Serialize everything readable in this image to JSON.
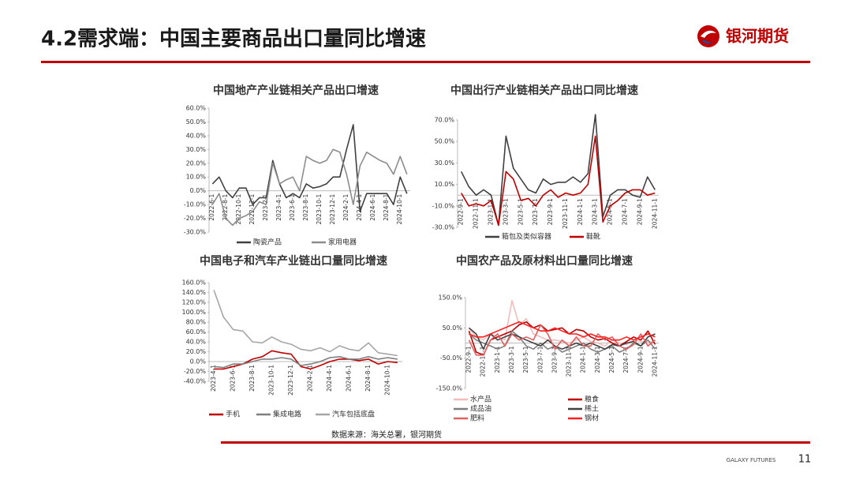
{
  "header": {
    "title": "4.2需求端：中国主要商品出口量同比增速",
    "logo_text": "银河期货"
  },
  "footer": {
    "source": "数据来源：海关总署，银河期货",
    "brand": "GALAXY FUTURES",
    "page": "11"
  },
  "chart_data": [
    {
      "type": "line",
      "title": "中国地产产业链相关产品出口增速",
      "categories": [
        "2022-6-1",
        null,
        "2022-8-1",
        null,
        "2022-10-1",
        null,
        "2022-12-1",
        null,
        "2023-2-1",
        null,
        "2023-4-1",
        null,
        "2023-6-1",
        null,
        "2023-8-1",
        null,
        "2023-10-1",
        null,
        "2023-12-1",
        null,
        "2024-2-1",
        null,
        "2024-4-1",
        null,
        "2024-6-1",
        null,
        "2024-8-1",
        null,
        "2024-10-1",
        null
      ],
      "ylim": [
        -30,
        60
      ],
      "yticks": [
        {
          "value": -30,
          "label": "-30.0%"
        },
        {
          "value": -20,
          "label": "-20.0%"
        },
        {
          "value": -10,
          "label": "-10.0%"
        },
        {
          "value": 0,
          "label": "0.0%"
        },
        {
          "value": 10,
          "label": "10.0%"
        },
        {
          "value": 20,
          "label": "20.0%"
        },
        {
          "value": 30,
          "label": "30.0%"
        },
        {
          "value": 40,
          "label": "40.0%"
        },
        {
          "value": 50,
          "label": "50.0%"
        },
        {
          "value": 60,
          "label": "60.0%"
        }
      ],
      "legend": "bottom",
      "series": [
        {
          "name": "陶瓷产品",
          "color": "#404040",
          "values": [
            5,
            10,
            0,
            -5,
            2,
            2,
            -10,
            -5,
            -5,
            22,
            5,
            -5,
            -2,
            -5,
            5,
            2,
            3,
            5,
            10,
            10,
            30,
            48,
            -15,
            -2,
            -2,
            -2,
            -2,
            -10,
            10,
            -2
          ]
        },
        {
          "name": "家用电器",
          "color": "#8c8c8c",
          "values": [
            -10,
            -2,
            -20,
            -25,
            -20,
            -18,
            -15,
            -8,
            -10,
            20,
            5,
            8,
            10,
            0,
            25,
            22,
            20,
            22,
            30,
            28,
            12,
            -10,
            18,
            28,
            25,
            22,
            20,
            12,
            25,
            12
          ]
        }
      ]
    },
    {
      "type": "line",
      "title": "中国出行产业链相关产品出口同比增速",
      "categories": [
        "2022-9-1",
        null,
        "2022-11-1",
        null,
        "2023-1-1",
        null,
        "2023-3-1",
        null,
        "2023-5-1",
        null,
        "2023-7-1",
        null,
        "2023-9-1",
        null,
        "2023-11-1",
        null,
        "2024-1-1",
        null,
        "2024-3-1",
        null,
        "2024-5-1",
        null,
        "2024-7-1",
        null,
        "2024-9-1",
        null,
        "2024-11-1"
      ],
      "ylim": [
        -30,
        70
      ],
      "yticks": [
        {
          "value": -30,
          "label": "-30.0%"
        },
        {
          "value": -10,
          "label": "-10.0%"
        },
        {
          "value": 10,
          "label": "10.0%"
        },
        {
          "value": 30,
          "label": "30.0%"
        },
        {
          "value": 50,
          "label": "50.0%"
        },
        {
          "value": 70,
          "label": "70.0%"
        }
      ],
      "legend": "bottom",
      "series": [
        {
          "name": "箱包及类似容器",
          "color": "#404040",
          "values": [
            22,
            8,
            0,
            5,
            0,
            -28,
            55,
            25,
            15,
            5,
            2,
            15,
            10,
            12,
            12,
            17,
            12,
            20,
            75,
            -20,
            0,
            5,
            5,
            0,
            -2,
            17,
            5
          ]
        },
        {
          "name": "鞋靴",
          "color": "#c00000",
          "values": [
            2,
            -10,
            -8,
            -10,
            -5,
            -28,
            22,
            15,
            -5,
            -3,
            -10,
            0,
            5,
            -2,
            2,
            0,
            2,
            10,
            55,
            -25,
            -10,
            -5,
            2,
            5,
            5,
            0,
            2
          ]
        }
      ]
    },
    {
      "type": "line",
      "title": "中国电子和汽车产业链出口量同比增速",
      "categories": [
        "2023-4-1",
        null,
        "2023-6-1",
        null,
        "2023-8-1",
        null,
        "2023-10-1",
        null,
        "2023-12-1",
        null,
        "2024-2-1",
        null,
        "2024-4-1",
        null,
        "2024-6-1",
        null,
        "2024-8-1",
        null,
        "2024-10-1",
        null
      ],
      "ylim": [
        -40,
        160
      ],
      "yticks": [
        {
          "value": -40,
          "label": "-40.0%"
        },
        {
          "value": -20,
          "label": "-20.0%"
        },
        {
          "value": 0,
          "label": "0.0%"
        },
        {
          "value": 20,
          "label": "20.0%"
        },
        {
          "value": 40,
          "label": "40.0%"
        },
        {
          "value": 60,
          "label": "60.0%"
        },
        {
          "value": 80,
          "label": "80.0%"
        },
        {
          "value": 100,
          "label": "100.0%"
        },
        {
          "value": 120,
          "label": "120.0%"
        },
        {
          "value": 140,
          "label": "140.0%"
        },
        {
          "value": 160,
          "label": "160.0%"
        }
      ],
      "legend": "bottom",
      "series": [
        {
          "name": "手机",
          "color": "#c00000",
          "values": [
            -15,
            -15,
            -10,
            -5,
            5,
            10,
            22,
            18,
            15,
            -10,
            -15,
            -8,
            0,
            5,
            5,
            2,
            5,
            -5,
            0,
            -2
          ]
        },
        {
          "name": "集成电路",
          "color": "#7f7f7f",
          "values": [
            -10,
            -12,
            -5,
            -5,
            0,
            5,
            5,
            8,
            5,
            -8,
            -5,
            0,
            8,
            10,
            5,
            5,
            10,
            5,
            8,
            5
          ]
        },
        {
          "name": "汽车包括底盘",
          "color": "#a6a6a6",
          "values": [
            145,
            90,
            65,
            62,
            40,
            38,
            50,
            40,
            35,
            25,
            22,
            28,
            20,
            32,
            25,
            22,
            38,
            18,
            15,
            12
          ]
        }
      ]
    },
    {
      "type": "line",
      "title": "中国农产品及原材料出口量同比增速",
      "categories": [
        "2022-9-1",
        null,
        "2022-11-1",
        null,
        "2023-1-1",
        null,
        "2023-3-1",
        null,
        "2023-5-1",
        null,
        "2023-7-1",
        null,
        "2023-9-1",
        null,
        "2023-11-1",
        null,
        "2024-1-1",
        null,
        "2024-3-1",
        null,
        "2024-5-1",
        null,
        "2024-7-1",
        null,
        "2024-9-1",
        null,
        "2024-11-1"
      ],
      "ylim": [
        -150,
        150
      ],
      "yticks": [
        {
          "value": -150,
          "label": "-150.0%"
        },
        {
          "value": -50,
          "label": "-50.0%"
        },
        {
          "value": 50,
          "label": "50.0%"
        },
        {
          "value": 150,
          "label": "150.0%"
        }
      ],
      "legend": "bottom",
      "series": [
        {
          "name": "水产品",
          "color": "#f2bcbc",
          "values": [
            50,
            20,
            10,
            30,
            20,
            10,
            140,
            60,
            80,
            30,
            20,
            10,
            10,
            5,
            0,
            10,
            20,
            5,
            0,
            -10,
            10,
            0,
            -5,
            10,
            5,
            0,
            10
          ]
        },
        {
          "name": "粮食",
          "color": "#c00000",
          "values": [
            40,
            -30,
            -40,
            10,
            20,
            30,
            40,
            60,
            70,
            50,
            60,
            40,
            45,
            50,
            30,
            45,
            40,
            20,
            10,
            15,
            0,
            -10,
            5,
            20,
            10,
            40,
            -5
          ]
        },
        {
          "name": "成品油",
          "color": "#7f7f7f",
          "values": [
            30,
            10,
            0,
            -10,
            -20,
            -10,
            40,
            20,
            -10,
            -20,
            0,
            -20,
            -10,
            -30,
            -20,
            -10,
            0,
            -20,
            -30,
            -20,
            -10,
            -30,
            -20,
            0,
            -10,
            10,
            -20
          ]
        },
        {
          "name": "稀土",
          "color": "#404040",
          "values": [
            50,
            30,
            -20,
            30,
            10,
            20,
            30,
            20,
            10,
            0,
            -10,
            10,
            -10,
            -20,
            -10,
            0,
            -10,
            0,
            -10,
            -20,
            -5,
            -10,
            0,
            5,
            -10,
            20,
            30
          ]
        },
        {
          "name": "肥料",
          "color": "#e06060",
          "values": [
            10,
            -40,
            -40,
            10,
            30,
            -10,
            30,
            10,
            20,
            10,
            60,
            30,
            -20,
            10,
            -10,
            20,
            -10,
            -10,
            30,
            10,
            20,
            -10,
            -20,
            -5,
            30,
            -10,
            10
          ]
        },
        {
          "name": "钢材",
          "color": "#ff2020",
          "values": [
            30,
            20,
            20,
            30,
            40,
            50,
            60,
            70,
            60,
            50,
            40,
            40,
            50,
            40,
            30,
            30,
            20,
            30,
            20,
            20,
            10,
            10,
            20,
            10,
            20,
            30,
            20
          ]
        }
      ]
    }
  ]
}
